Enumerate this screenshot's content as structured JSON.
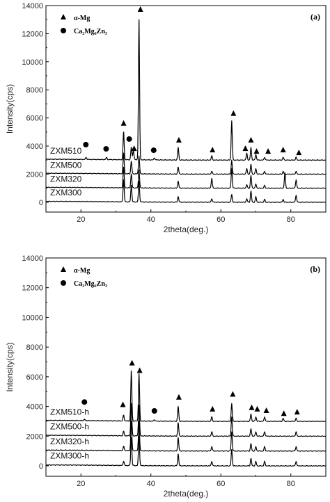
{
  "chart_data": [
    {
      "type": "line",
      "panel_label": "(a)",
      "xlabel": "2theta(deg.)",
      "ylabel": "Intensity(cps)",
      "xlim": [
        10,
        90
      ],
      "ylim": [
        -700,
        14000
      ],
      "xticks": [
        20,
        40,
        60,
        80
      ],
      "yticks": [
        0,
        2000,
        4000,
        6000,
        8000,
        10000,
        12000,
        14000
      ],
      "legend": [
        {
          "marker": "triangle",
          "label": "α-Mg"
        },
        {
          "marker": "circle",
          "label": "Ca₂Mg₆Zn₃"
        }
      ],
      "series": [
        {
          "name": "ZXM300",
          "baseline": 0,
          "label_y": 500,
          "peaks": [
            [
              32.2,
              1600
            ],
            [
              34.4,
              1200
            ],
            [
              36.6,
              1500
            ],
            [
              47.8,
              400
            ],
            [
              57.4,
              250
            ],
            [
              63.1,
              550
            ],
            [
              67.4,
              250
            ],
            [
              68.6,
              800
            ],
            [
              70.0,
              400
            ],
            [
              72.5,
              200
            ],
            [
              77.8,
              200
            ],
            [
              81.5,
              500
            ]
          ]
        },
        {
          "name": "ZXM320",
          "baseline": 1000,
          "label_y": 1450,
          "peaks": [
            [
              32.2,
              1500
            ],
            [
              34.4,
              1000
            ],
            [
              36.6,
              1300
            ],
            [
              47.8,
              500
            ],
            [
              57.4,
              700
            ],
            [
              63.1,
              1400
            ],
            [
              67.4,
              250
            ],
            [
              68.6,
              900
            ],
            [
              70.0,
              300
            ],
            [
              72.5,
              200
            ],
            [
              78.3,
              1100
            ],
            [
              81.5,
              600
            ]
          ]
        },
        {
          "name": "ZXM500",
          "baseline": 2000,
          "label_y": 2450,
          "peaks": [
            [
              32.2,
              1500
            ],
            [
              34.4,
              900
            ],
            [
              36.6,
              1300
            ],
            [
              47.8,
              500
            ],
            [
              57.4,
              200
            ],
            [
              63.1,
              1000
            ],
            [
              67.4,
              400
            ],
            [
              68.6,
              700
            ],
            [
              70.0,
              400
            ],
            [
              72.5,
              200
            ],
            [
              77.8,
              200
            ],
            [
              81.5,
              200
            ]
          ]
        },
        {
          "name": "ZXM510",
          "baseline": 3000,
          "label_y": 3450,
          "peaks": [
            [
              21.5,
              150
            ],
            [
              27.3,
              150
            ],
            [
              32.2,
              2000
            ],
            [
              34.4,
              900
            ],
            [
              35.0,
              700
            ],
            [
              36.6,
              10000
            ],
            [
              41.0,
              150
            ],
            [
              47.8,
              900
            ],
            [
              57.4,
              300
            ],
            [
              63.1,
              2800
            ],
            [
              67.4,
              500
            ],
            [
              68.6,
              900
            ],
            [
              70.0,
              400
            ],
            [
              72.5,
              200
            ],
            [
              77.8,
              200
            ],
            [
              81.5,
              200
            ]
          ]
        }
      ],
      "annotations": [
        {
          "marker": "triangle",
          "x": 32.2,
          "y": 5600
        },
        {
          "marker": "triangle",
          "x": 35.2,
          "y": 3800
        },
        {
          "marker": "triangle",
          "x": 37.0,
          "y": 13700
        },
        {
          "marker": "triangle",
          "x": 48.0,
          "y": 4400
        },
        {
          "marker": "triangle",
          "x": 57.6,
          "y": 3700
        },
        {
          "marker": "triangle",
          "x": 63.6,
          "y": 6300
        },
        {
          "marker": "triangle",
          "x": 67.0,
          "y": 3800
        },
        {
          "marker": "triangle",
          "x": 68.6,
          "y": 4400
        },
        {
          "marker": "triangle",
          "x": 70.2,
          "y": 3600
        },
        {
          "marker": "triangle",
          "x": 73.5,
          "y": 3600
        },
        {
          "marker": "triangle",
          "x": 77.8,
          "y": 3700
        },
        {
          "marker": "triangle",
          "x": 82.3,
          "y": 3500
        },
        {
          "marker": "circle",
          "x": 21.4,
          "y": 4100
        },
        {
          "marker": "circle",
          "x": 27.2,
          "y": 3800
        },
        {
          "marker": "circle",
          "x": 33.8,
          "y": 4500
        },
        {
          "marker": "circle",
          "x": 40.8,
          "y": 3700
        }
      ]
    },
    {
      "type": "line",
      "panel_label": "(b)",
      "xlabel": "2theta(deg.)",
      "ylabel": "Intensity(cps)",
      "xlim": [
        10,
        90
      ],
      "ylim": [
        -700,
        14000
      ],
      "xticks": [
        20,
        40,
        60,
        80
      ],
      "yticks": [
        0,
        2000,
        4000,
        6000,
        8000,
        10000,
        12000,
        14000
      ],
      "legend": [
        {
          "marker": "triangle",
          "label": "α-Mg"
        },
        {
          "marker": "circle",
          "label": "Ca₂Mg₆Zn₃"
        }
      ],
      "series": [
        {
          "name": "ZXM300-h",
          "baseline": 0,
          "label_y": 500,
          "peaks": [
            [
              32.2,
              300
            ],
            [
              34.4,
              1900
            ],
            [
              36.6,
              2000
            ],
            [
              47.8,
              800
            ],
            [
              57.4,
              300
            ],
            [
              63.1,
              1100
            ],
            [
              68.6,
              500
            ],
            [
              70.0,
              300
            ],
            [
              72.5,
              300
            ],
            [
              81.5,
              300
            ]
          ]
        },
        {
          "name": "ZXM320-h",
          "baseline": 1000,
          "label_y": 1450,
          "peaks": [
            [
              32.2,
              300
            ],
            [
              34.4,
              2000
            ],
            [
              36.6,
              2000
            ],
            [
              47.8,
              900
            ],
            [
              57.4,
              300
            ],
            [
              63.1,
              1300
            ],
            [
              68.6,
              500
            ],
            [
              70.0,
              300
            ],
            [
              72.5,
              300
            ],
            [
              81.5,
              300
            ]
          ]
        },
        {
          "name": "ZXM500-h",
          "baseline": 2000,
          "label_y": 2450,
          "peaks": [
            [
              32.2,
              300
            ],
            [
              34.4,
              2200
            ],
            [
              36.6,
              2100
            ],
            [
              47.8,
              900
            ],
            [
              57.4,
              300
            ],
            [
              63.1,
              1300
            ],
            [
              68.6,
              500
            ],
            [
              70.0,
              300
            ],
            [
              72.5,
              300
            ],
            [
              81.5,
              300
            ]
          ]
        },
        {
          "name": "ZXM510-h",
          "baseline": 3000,
          "label_y": 3450,
          "peaks": [
            [
              21.0,
              100
            ],
            [
              32.2,
              400
            ],
            [
              34.4,
              3400
            ],
            [
              36.6,
              3200
            ],
            [
              41.0,
              100
            ],
            [
              47.8,
              1000
            ],
            [
              57.4,
              300
            ],
            [
              63.1,
              1200
            ],
            [
              68.6,
              500
            ],
            [
              70.0,
              300
            ],
            [
              72.5,
              300
            ],
            [
              77.8,
              200
            ],
            [
              81.5,
              200
            ]
          ]
        }
      ],
      "annotations": [
        {
          "marker": "triangle",
          "x": 32.0,
          "y": 4100
        },
        {
          "marker": "triangle",
          "x": 34.6,
          "y": 6900
        },
        {
          "marker": "triangle",
          "x": 36.8,
          "y": 6400
        },
        {
          "marker": "triangle",
          "x": 48.0,
          "y": 4600
        },
        {
          "marker": "triangle",
          "x": 57.6,
          "y": 3800
        },
        {
          "marker": "triangle",
          "x": 63.4,
          "y": 4800
        },
        {
          "marker": "triangle",
          "x": 68.8,
          "y": 3900
        },
        {
          "marker": "triangle",
          "x": 70.4,
          "y": 3800
        },
        {
          "marker": "triangle",
          "x": 73.0,
          "y": 3700
        },
        {
          "marker": "triangle",
          "x": 78.0,
          "y": 3500
        },
        {
          "marker": "triangle",
          "x": 81.8,
          "y": 3600
        },
        {
          "marker": "circle",
          "x": 21.0,
          "y": 4300
        },
        {
          "marker": "circle",
          "x": 41.0,
          "y": 3700
        }
      ]
    }
  ]
}
